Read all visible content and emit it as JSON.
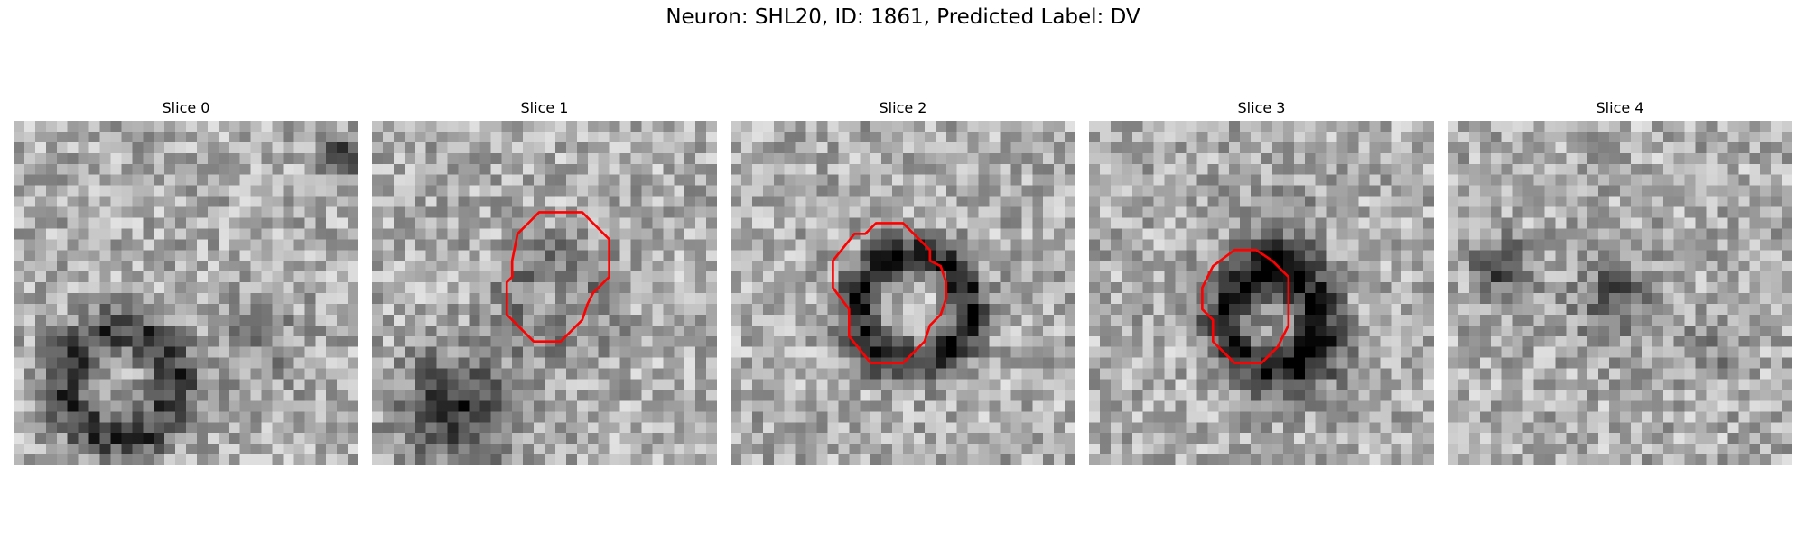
{
  "figure": {
    "title": "Neuron: SHL20, ID: 1861, Predicted Label: DV"
  },
  "panels": [
    {
      "title": "Slice 0",
      "has_contour": false
    },
    {
      "title": "Slice 1",
      "has_contour": true
    },
    {
      "title": "Slice 2",
      "has_contour": true
    },
    {
      "title": "Slice 3",
      "has_contour": true
    },
    {
      "title": "Slice 4",
      "has_contour": false
    }
  ],
  "colors": {
    "contour": "#ff0000",
    "background": "#ffffff"
  },
  "image": {
    "grid_size": 32,
    "colormap": "grayscale"
  }
}
